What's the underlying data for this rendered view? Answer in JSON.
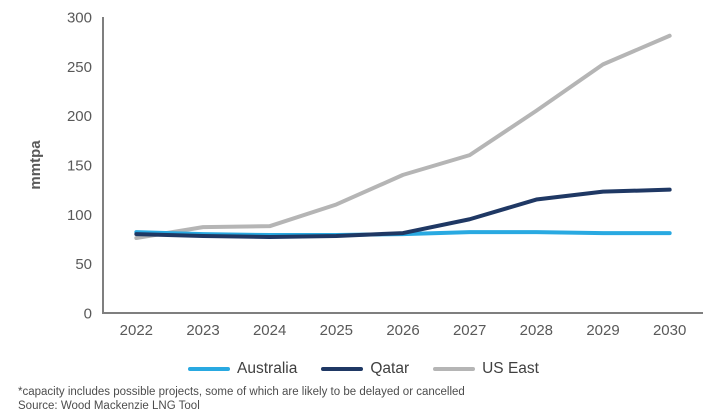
{
  "chart_data": {
    "type": "line",
    "title": "",
    "xlabel": "",
    "ylabel": "mmtpa",
    "x": [
      2022,
      2023,
      2024,
      2025,
      2026,
      2027,
      2028,
      2029,
      2030
    ],
    "ylim": [
      0,
      300
    ],
    "yticks": [
      0,
      50,
      100,
      150,
      200,
      250,
      300
    ],
    "grid": false,
    "legend_position": "bottom",
    "axis_color": "#7f7f7f",
    "tick_label_color": "#595959",
    "series": [
      {
        "name": "Australia",
        "color": "#29a9e1",
        "values": [
          82,
          80,
          79,
          79,
          80,
          82,
          82,
          81,
          81
        ]
      },
      {
        "name": "Qatar",
        "color": "#1f3864",
        "values": [
          80,
          78,
          77,
          78,
          81,
          95,
          115,
          123,
          125
        ]
      },
      {
        "name": "US East",
        "color": "#b5b5b5",
        "values": [
          76,
          87,
          88,
          110,
          140,
          160,
          205,
          252,
          281
        ]
      }
    ]
  },
  "footer": {
    "footnote": "*capacity includes possible projects, some of which are likely to be delayed or cancelled",
    "source": "Source: Wood Mackenzie LNG Tool"
  }
}
